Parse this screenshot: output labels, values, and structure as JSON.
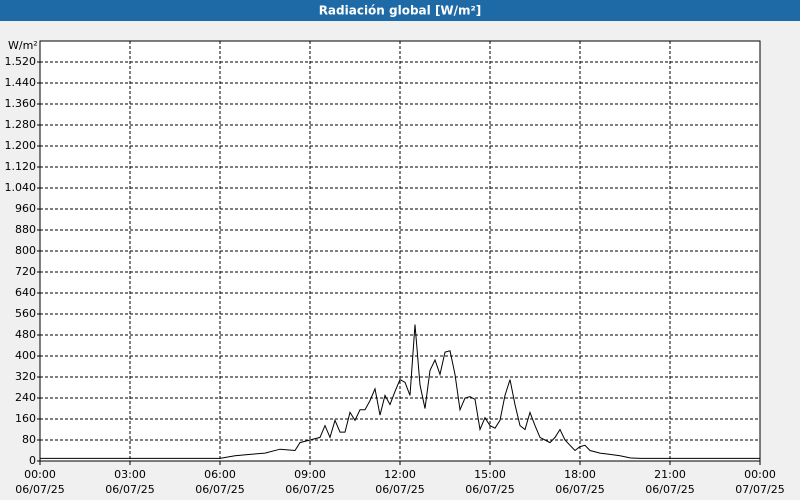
{
  "chart_data": {
    "type": "line",
    "title": "Radiación global [W/m²]",
    "ylabel": "W/m²",
    "color": "#000000",
    "grid": true,
    "x": [
      0,
      360,
      390,
      420,
      450,
      480,
      510,
      520,
      540,
      560,
      570,
      580,
      590,
      600,
      610,
      620,
      630,
      640,
      650,
      660,
      670,
      680,
      690,
      700,
      710,
      720,
      730,
      740,
      750,
      760,
      770,
      780,
      790,
      800,
      810,
      820,
      830,
      840,
      850,
      860,
      870,
      880,
      890,
      900,
      910,
      920,
      930,
      940,
      950,
      960,
      970,
      980,
      990,
      1000,
      1010,
      1020,
      1030,
      1040,
      1050,
      1060,
      1070,
      1080,
      1090,
      1100,
      1120,
      1140,
      1160,
      1180,
      1200,
      1440
    ],
    "values": [
      10,
      10,
      20,
      25,
      30,
      45,
      40,
      70,
      80,
      90,
      135,
      90,
      155,
      110,
      110,
      185,
      155,
      195,
      195,
      230,
      275,
      175,
      250,
      215,
      265,
      310,
      300,
      250,
      520,
      290,
      200,
      345,
      385,
      330,
      415,
      420,
      330,
      195,
      240,
      245,
      235,
      120,
      165,
      135,
      125,
      155,
      250,
      310,
      215,
      135,
      120,
      185,
      135,
      90,
      80,
      70,
      90,
      120,
      80,
      60,
      40,
      55,
      60,
      40,
      30,
      25,
      20,
      12,
      10,
      10
    ],
    "xlim": [
      0,
      1440
    ],
    "xticks": [
      {
        "value": 0,
        "label": [
          "00:00",
          "06/07/25"
        ]
      },
      {
        "value": 180,
        "label": [
          "03:00",
          "06/07/25"
        ]
      },
      {
        "value": 360,
        "label": [
          "06:00",
          "06/07/25"
        ]
      },
      {
        "value": 540,
        "label": [
          "09:00",
          "06/07/25"
        ]
      },
      {
        "value": 720,
        "label": [
          "12:00",
          "06/07/25"
        ]
      },
      {
        "value": 900,
        "label": [
          "15:00",
          "06/07/25"
        ]
      },
      {
        "value": 1080,
        "label": [
          "18:00",
          "06/07/25"
        ]
      },
      {
        "value": 1260,
        "label": [
          "21:00",
          "06/07/25"
        ]
      },
      {
        "value": 1440,
        "label": [
          "00:00",
          "07/07/25"
        ]
      }
    ],
    "ylim": [
      0,
      1600
    ],
    "yticks": [
      0,
      80,
      160,
      240,
      320,
      400,
      480,
      560,
      640,
      720,
      800,
      880,
      960,
      {
        "value": 1040,
        "label": "1.040"
      },
      {
        "value": 1120,
        "label": "1.120"
      },
      {
        "value": 1200,
        "label": "1.200"
      },
      {
        "value": 1280,
        "label": "1.280"
      },
      {
        "value": 1360,
        "label": "1.360"
      },
      {
        "value": 1440,
        "label": "1.440"
      },
      {
        "value": 1520,
        "label": "1.520"
      }
    ]
  }
}
